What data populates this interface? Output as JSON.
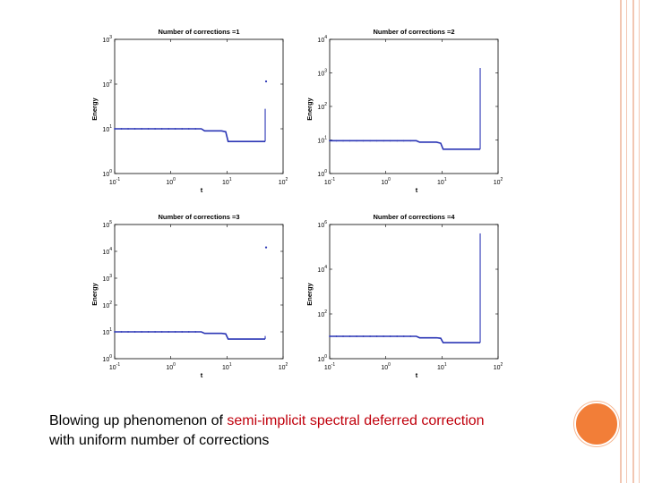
{
  "caption": {
    "prefix": "Blowing up phenomenon of ",
    "highlight": "semi-implicit spectral deferred correction",
    "line2": "with uniform number of corrections"
  },
  "colors": {
    "accent_circle": "#f27e38",
    "deco_lines": "#f2c7b3",
    "series": "#2a35b5",
    "highlight": "#c0000c"
  },
  "chart_data": [
    {
      "type": "line",
      "title": "Number of corrections =1",
      "xlabel": "t",
      "ylabel": "Energy",
      "xscale": "log",
      "yscale": "log",
      "xlim": [
        0.1,
        100
      ],
      "ylim": [
        1,
        1000
      ],
      "x_ticks": [
        0.1,
        1,
        10,
        100
      ],
      "x_tick_labels": [
        "10^-1",
        "10^0",
        "10^1",
        "10^2"
      ],
      "y_ticks": [
        1,
        10,
        100,
        1000
      ],
      "y_tick_labels": [
        "10^0",
        "10^1",
        "10^2",
        "10^3"
      ],
      "series": [
        {
          "points": [
            [
              0.1,
              10
            ],
            [
              3.5,
              10
            ],
            [
              4.0,
              9.0
            ],
            [
              8,
              9.0
            ],
            [
              9.5,
              8.6
            ],
            [
              10.5,
              5.2
            ],
            [
              48,
              5.2
            ]
          ],
          "spike": {
            "x": 48,
            "y_low": 5.2,
            "y_high": 28,
            "outlier": 115
          }
        }
      ]
    },
    {
      "type": "line",
      "title": "Number of corrections =2",
      "xlabel": "t",
      "ylabel": "Energy",
      "xscale": "log",
      "yscale": "log",
      "xlim": [
        0.1,
        100
      ],
      "ylim": [
        1,
        10000
      ],
      "x_ticks": [
        0.1,
        1,
        10,
        100
      ],
      "x_tick_labels": [
        "10^-1",
        "10^0",
        "10^1",
        "10^2"
      ],
      "y_ticks": [
        1,
        10,
        100,
        1000,
        10000
      ],
      "y_tick_labels": [
        "10^0",
        "10^1",
        "10^2",
        "10^3",
        "10^4"
      ],
      "series": [
        {
          "points": [
            [
              0.1,
              9.5
            ],
            [
              3.5,
              9.5
            ],
            [
              4.0,
              8.6
            ],
            [
              8,
              8.6
            ],
            [
              9.5,
              8.0
            ],
            [
              10.5,
              5.3
            ],
            [
              48,
              5.3
            ]
          ],
          "spike": {
            "x": 48,
            "y_low": 5.3,
            "y_high": 1400,
            "outlier": null
          }
        }
      ]
    },
    {
      "type": "line",
      "title": "Number of corrections =3",
      "xlabel": "t",
      "ylabel": "Energy",
      "xscale": "log",
      "yscale": "log",
      "xlim": [
        0.1,
        100
      ],
      "ylim": [
        1,
        100000
      ],
      "x_ticks": [
        0.1,
        1,
        10,
        100
      ],
      "x_tick_labels": [
        "10^-1",
        "10^0",
        "10^1",
        "10^2"
      ],
      "y_ticks": [
        1,
        10,
        100,
        1000,
        10000,
        100000
      ],
      "y_tick_labels": [
        "10^0",
        "10^1",
        "10^2",
        "10^3",
        "10^4",
        "10^5"
      ],
      "series": [
        {
          "points": [
            [
              0.1,
              10
            ],
            [
              3.5,
              10
            ],
            [
              4.0,
              8.8
            ],
            [
              8,
              8.8
            ],
            [
              9.5,
              8.4
            ],
            [
              10.5,
              5.4
            ],
            [
              48,
              5.4
            ]
          ],
          "spike": {
            "x": 48,
            "y_low": 5.4,
            "y_high": 7,
            "outlier": 14000
          }
        }
      ]
    },
    {
      "type": "line",
      "title": "Number of corrections =4",
      "xlabel": "t",
      "ylabel": "Energy",
      "xscale": "log",
      "yscale": "log",
      "xlim": [
        0.1,
        100
      ],
      "ylim": [
        1,
        1000000
      ],
      "x_ticks": [
        0.1,
        1,
        10,
        100
      ],
      "x_tick_labels": [
        "10^-1",
        "10^0",
        "10^1",
        "10^2"
      ],
      "y_ticks": [
        1,
        100,
        10000,
        1000000
      ],
      "y_tick_labels": [
        "10^0",
        "10^2",
        "10^4",
        "10^6"
      ],
      "series": [
        {
          "points": [
            [
              0.1,
              10
            ],
            [
              3.5,
              10
            ],
            [
              4.0,
              8.6
            ],
            [
              8,
              8.6
            ],
            [
              9.5,
              8.2
            ],
            [
              10.5,
              5.2
            ],
            [
              48,
              5.2
            ]
          ],
          "spike": {
            "x": 48,
            "y_low": 5.2,
            "y_high": 400000,
            "outlier": null
          }
        }
      ]
    }
  ]
}
